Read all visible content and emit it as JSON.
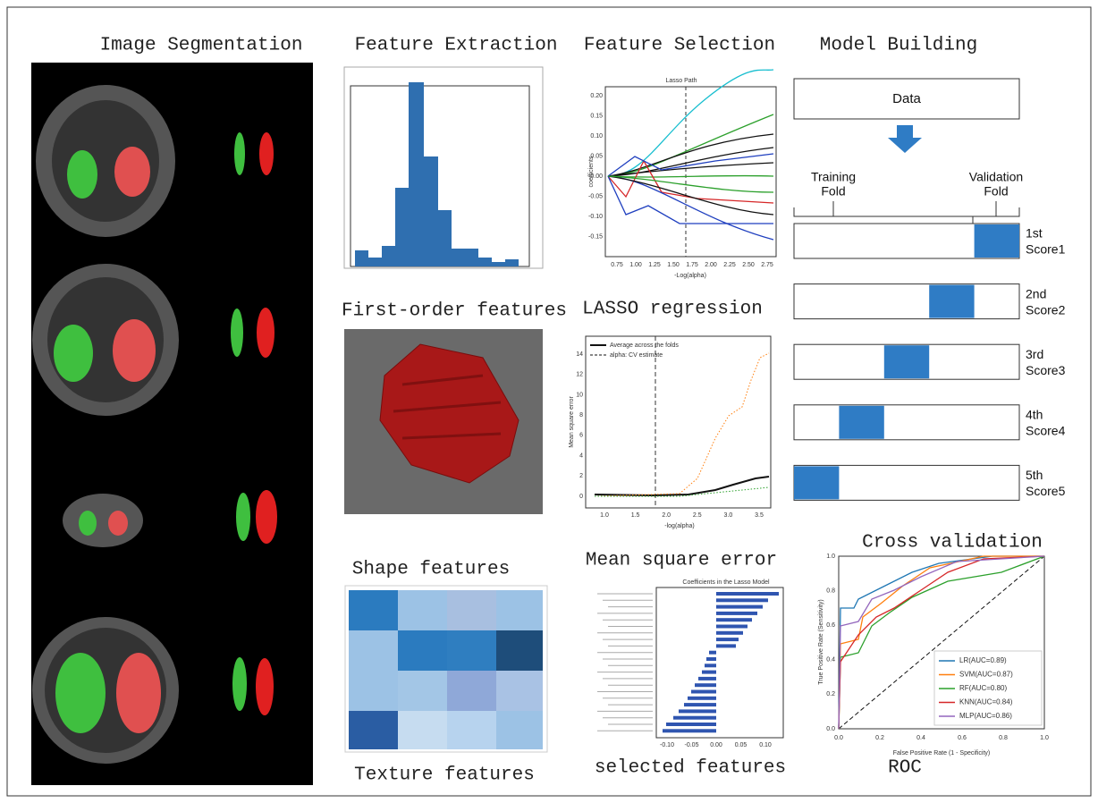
{
  "sections": {
    "segmentation": "Image Segmentation",
    "extraction": "Feature Extraction",
    "selection": "Feature Selection",
    "model": "Model Building",
    "first_order": "First-order features",
    "lasso": "LASSO regression",
    "shape": "Shape features",
    "mse": "Mean square error",
    "texture": "Texture features",
    "selected": "selected features",
    "cross_validation": "Cross validation",
    "roc": "ROC"
  },
  "lasso_path": {
    "title": "Lasso Path",
    "ylabel": "coefficients",
    "xlabel": "-Log(alpha)",
    "xticks": [
      "0.75",
      "1.00",
      "1.25",
      "1.50",
      "1.75",
      "2.00",
      "2.25",
      "2.50",
      "2.75"
    ],
    "yticks": [
      "0.20",
      "0.15",
      "0.10",
      "0.05",
      "0.00",
      "-0.05",
      "-0.10",
      "-0.15"
    ]
  },
  "mse_plot": {
    "ylabel": "Mean square error",
    "xlabel": "-log(alpha)",
    "legend": [
      "Average across the folds",
      "alpha: CV estimate"
    ],
    "xticks": [
      "1.0",
      "1.5",
      "2.0",
      "2.5",
      "3.0",
      "3.5"
    ],
    "yticks": [
      "0",
      "2",
      "4",
      "6",
      "8",
      "10",
      "12",
      "14"
    ]
  },
  "coef_plot": {
    "title": "Coefficients in the Lasso Model",
    "xticks": [
      "-0.10",
      "-0.05",
      "0.00",
      "0.05",
      "0.10"
    ]
  },
  "model": {
    "data": "Data",
    "training": [
      "Training",
      "Fold"
    ],
    "validation": [
      "Validation",
      "Fold"
    ],
    "folds": [
      {
        "label": "1st",
        "score": "Score1"
      },
      {
        "label": "2nd",
        "score": "Score2"
      },
      {
        "label": "3rd",
        "score": "Score3"
      },
      {
        "label": "4th",
        "score": "Score4"
      },
      {
        "label": "5th",
        "score": "Score5"
      }
    ]
  },
  "roc": {
    "ylabel": "True Positive Rate (Sensitivity)",
    "xlabel": "False Positive Rate (1 - Specificity)",
    "xticks": [
      "0.0",
      "0.2",
      "0.4",
      "0.6",
      "0.8",
      "1.0"
    ],
    "yticks": [
      "0.0",
      "0.2",
      "0.4",
      "0.6",
      "0.8",
      "1.0"
    ],
    "legend": [
      {
        "name": "LR(AUC=0.89)",
        "color": "#1f77b4"
      },
      {
        "name": "SVM(AUC=0.87)",
        "color": "#ff7f0e"
      },
      {
        "name": "RF(AUC=0.80)",
        "color": "#2ca02c"
      },
      {
        "name": "KNN(AUC=0.84)",
        "color": "#d62728"
      },
      {
        "name": "MLP(AUC=0.86)",
        "color": "#9467bd"
      }
    ]
  }
}
